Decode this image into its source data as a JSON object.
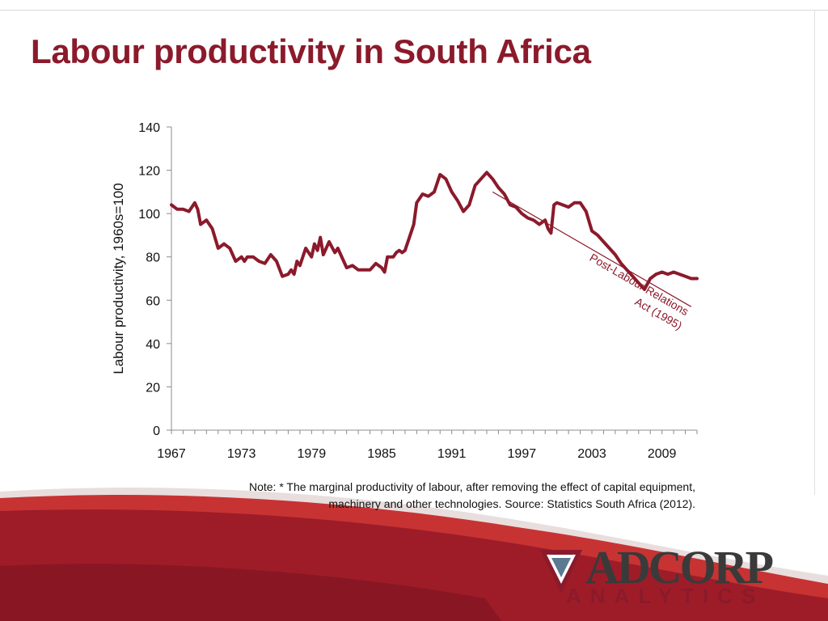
{
  "slide": {
    "title": "Labour productivity in South Africa",
    "note": "Note: * The marginal productivity of labour, after removing the effect of capital equipment, machinery and other technologies. Source: Statistics South Africa (2012).",
    "logo": {
      "wordmark": "ADCORP",
      "subtitle": "ANALYTICS"
    },
    "colors": {
      "accent": "#8b1a2b",
      "line": "#8b1a2b",
      "swoosh_dark": "#a11d2a",
      "swoosh_light": "#d94040"
    }
  },
  "chart_data": {
    "type": "line",
    "title": "",
    "xlabel": "",
    "ylabel": "Labour productivity, 1960s=100",
    "xlim": [
      1967,
      2012
    ],
    "ylim": [
      0,
      140
    ],
    "xticks": [
      "1967",
      "1973",
      "1979",
      "1985",
      "1991",
      "1997",
      "2003",
      "2009"
    ],
    "yticks": [
      "0",
      "20",
      "40",
      "60",
      "80",
      "100",
      "120",
      "140"
    ],
    "grid": false,
    "series": [
      {
        "x": [
          1967.0,
          1967.5,
          1968.0,
          1968.5,
          1969.0,
          1969.25,
          1969.5,
          1970.0,
          1970.5,
          1971.0,
          1971.5,
          1971.75,
          1972.0,
          1972.5,
          1973.0,
          1973.25,
          1973.5,
          1974.0,
          1974.5,
          1975.0,
          1975.5,
          1976.0,
          1976.5,
          1977.0,
          1977.25,
          1977.5,
          1977.75,
          1978.0,
          1978.5,
          1979.0,
          1979.25,
          1979.5,
          1979.75,
          1980.0,
          1980.5,
          1981.0,
          1981.25,
          1981.5,
          1982.0,
          1982.5,
          1983.0,
          1983.5,
          1983.75,
          1984.0,
          1984.5,
          1985.0,
          1985.25,
          1985.5,
          1986.0,
          1986.25,
          1986.5,
          1986.75,
          1987.0,
          1987.5,
          1987.75,
          1988.0,
          1988.5,
          1989.0,
          1989.5,
          1990.0,
          1990.5,
          1991.0,
          1991.5,
          1992.0,
          1992.5,
          1993.0,
          1993.5,
          1994.0,
          1994.5,
          1995.0,
          1995.5,
          1996.0,
          1996.5,
          1997.0,
          1997.5,
          1998.0,
          1998.5,
          1999.0,
          1999.25,
          1999.5,
          1999.75,
          2000.0,
          2000.5,
          2001.0,
          2001.5,
          2002.0,
          2002.5,
          2003.0,
          2003.5,
          2004.0,
          2004.5,
          2005.0,
          2005.5,
          2006.0,
          2006.5,
          2007.0,
          2007.5,
          2008.0,
          2008.5,
          2009.0,
          2009.5,
          2010.0,
          2010.5,
          2011.0,
          2011.5,
          2012.0
        ],
        "y": [
          104,
          102,
          102,
          101,
          105,
          102,
          95,
          97,
          93,
          84,
          86,
          85,
          84,
          78,
          80,
          78,
          80,
          80,
          78,
          77,
          81,
          78,
          71,
          72,
          74,
          72,
          78,
          76,
          84,
          80,
          86,
          83,
          89,
          81,
          87,
          82,
          84,
          81,
          75,
          76,
          74,
          74,
          74,
          74,
          77,
          75,
          73,
          80,
          80,
          82,
          83,
          82,
          83,
          91,
          95,
          105,
          109,
          108,
          110,
          118,
          116,
          110,
          106,
          101,
          104,
          113,
          116,
          119,
          116,
          112,
          109,
          104,
          103,
          100,
          98,
          97,
          95,
          97,
          93,
          91,
          104,
          105,
          104,
          103,
          105,
          105,
          101,
          92,
          90,
          87,
          84,
          81,
          77,
          74,
          71,
          68,
          65,
          70,
          72,
          73,
          72,
          73,
          72,
          71,
          70,
          70
        ]
      }
    ],
    "annotation": {
      "text_line1": "Post-Labour Relations",
      "text_line2": "Act (1995)",
      "from": [
        1994.5,
        110
      ],
      "to": [
        2011.5,
        57
      ]
    }
  }
}
